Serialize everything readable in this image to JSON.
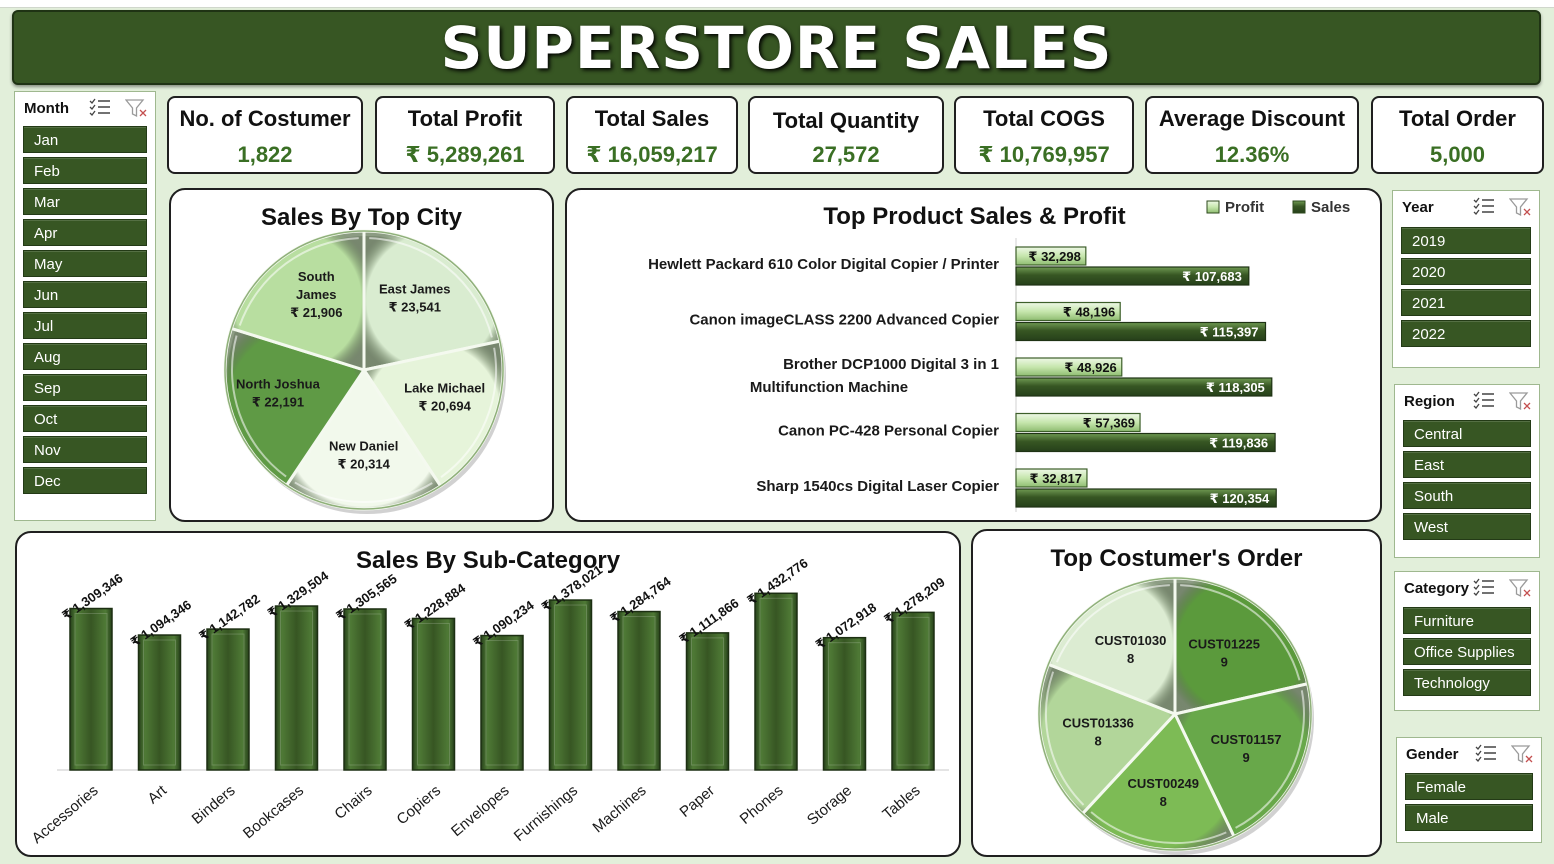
{
  "header": {
    "title": "SUPERSTORE SALES"
  },
  "kpis": [
    {
      "label": "No. of Costumer",
      "value": "1,822"
    },
    {
      "label": "Total Profit",
      "value": "₹ 5,289,261"
    },
    {
      "label": "Total Sales",
      "value": "₹ 16,059,217"
    },
    {
      "label": "Total Quantity",
      "value": "27,572"
    },
    {
      "label": "Total COGS",
      "value": "₹ 10,769,957"
    },
    {
      "label": "Average Discount",
      "value": "12.36%"
    },
    {
      "label": "Total Order",
      "value": "5,000"
    }
  ],
  "slicers": {
    "month": {
      "title": "Month",
      "items": [
        "Jan",
        "Feb",
        "Mar",
        "Apr",
        "May",
        "Jun",
        "Jul",
        "Aug",
        "Sep",
        "Oct",
        "Nov",
        "Dec"
      ]
    },
    "year": {
      "title": "Year",
      "items": [
        "2019",
        "2020",
        "2021",
        "2022"
      ]
    },
    "region": {
      "title": "Region",
      "items": [
        "Central",
        "East",
        "South",
        "West"
      ]
    },
    "category": {
      "title": "Category",
      "items": [
        "Furniture",
        "Office Supplies",
        "Technology"
      ]
    },
    "gender": {
      "title": "Gender",
      "items": [
        "Female",
        "Male"
      ]
    }
  },
  "icons": {
    "multi_select": "multi-select-icon",
    "clear_filter": "clear-filter-icon"
  },
  "colors": {
    "header": "#375623",
    "accent_text": "#3a6f24",
    "bar": "#375623",
    "page_bg": "#e2efda"
  },
  "chart_data": [
    {
      "type": "pie",
      "title": "Sales By Top City",
      "slices": [
        {
          "label": "East James",
          "value": 23541,
          "display": "₹ 23,541",
          "color": "#d9ecd0"
        },
        {
          "label": "Lake Michael",
          "value": 20694,
          "display": "₹ 20,694",
          "color": "#e6f4da"
        },
        {
          "label": "New Daniel",
          "value": 20314,
          "display": "₹ 20,314",
          "color": "#f2f9ec"
        },
        {
          "label": "North Joshua",
          "value": 22191,
          "display": "₹ 22,191",
          "color": "#5f9a45"
        },
        {
          "label": "South James",
          "value": 21906,
          "display": "₹ 21,906",
          "color": "#b8dea0"
        }
      ]
    },
    {
      "type": "bar",
      "orientation": "horizontal",
      "title": "Top Product Sales & Profit",
      "legend": [
        "Profit",
        "Sales"
      ],
      "legend_position": "top-right",
      "categories": [
        "Hewlett Packard 610 Color Digital Copier / Printer",
        "Canon imageCLASS 2200 Advanced Copier",
        "Brother DCP1000 Digital 3 in 1 Multifunction Machine",
        "Canon PC-428 Personal Copier",
        "Sharp 1540cs Digital Laser Copier"
      ],
      "series": [
        {
          "name": "Profit",
          "values": [
            32298,
            48196,
            48926,
            57369,
            32817
          ],
          "labels": [
            "₹ 32,298",
            "₹ 48,196",
            "₹ 48,926",
            "₹ 57,369",
            "₹ 32,817"
          ],
          "color": "#c6e6ad"
        },
        {
          "name": "Sales",
          "values": [
            107683,
            115397,
            118305,
            119836,
            120354
          ],
          "labels": [
            "₹ 107,683",
            "₹ 115,397",
            "₹ 118,305",
            "₹ 119,836",
            "₹ 120,354"
          ],
          "color": "#375623"
        }
      ]
    },
    {
      "type": "bar",
      "title": "Sales By Sub-Category",
      "categories": [
        "Accessories",
        "Art",
        "Binders",
        "Bookcases",
        "Chairs",
        "Copiers",
        "Envelopes",
        "Furnishings",
        "Machines",
        "Paper",
        "Phones",
        "Storage",
        "Tables"
      ],
      "values": [
        1309346,
        1094346,
        1142782,
        1329504,
        1305565,
        1228884,
        1090234,
        1378021,
        1284764,
        1111866,
        1432776,
        1072918,
        1278209
      ],
      "labels": [
        "₹ 1,309,346",
        "₹ 1,094,346",
        "₹ 1,142,782",
        "₹ 1,329,504",
        "₹ 1,305,565",
        "₹ 1,228,884",
        "₹ 1,090,234",
        "₹ 1,378,021",
        "₹ 1,284,764",
        "₹ 1,111,866",
        "₹ 1,432,776",
        "₹ 1,072,918",
        "₹ 1,278,209"
      ],
      "ylim": [
        0,
        1500000
      ]
    },
    {
      "type": "pie",
      "title": "Top Costumer's Order",
      "slices": [
        {
          "label": "CUST01225",
          "value": 9,
          "color": "#5b9a3c"
        },
        {
          "label": "CUST01157",
          "value": 9,
          "color": "#68a84a"
        },
        {
          "label": "CUST00249",
          "value": 8,
          "color": "#7dbb55"
        },
        {
          "label": "CUST01336",
          "value": 8,
          "color": "#b2d69a"
        },
        {
          "label": "CUST01030",
          "value": 8,
          "color": "#dcecd2"
        }
      ]
    }
  ]
}
